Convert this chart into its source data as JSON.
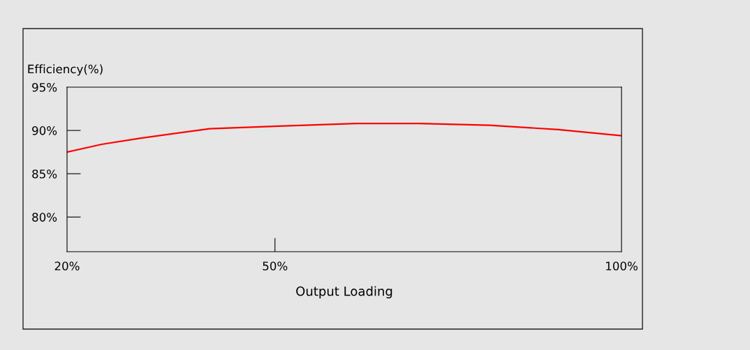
{
  "chart_data": {
    "type": "line",
    "xlabel": "Output Loading",
    "ylabel": "Efficiency(%)",
    "x": [
      20,
      25,
      30.5,
      40.6,
      50.6,
      61.7,
      70.8,
      80.9,
      90.9,
      100
    ],
    "series": [
      {
        "color": "#ff0000",
        "values": [
          87.5,
          88.4,
          89.1,
          90.2,
          90.5,
          90.8,
          90.8,
          90.6,
          90.1,
          89.4
        ]
      }
    ],
    "xlim": [
      20,
      100
    ],
    "xticks": [
      {
        "value": 20,
        "label": "20%"
      },
      {
        "value": 50,
        "label": "50%"
      },
      {
        "value": 100,
        "label": "100%"
      }
    ],
    "ylim": [
      76,
      95
    ],
    "yticks": [
      {
        "value": 80,
        "label": "80%"
      },
      {
        "value": 85,
        "label": "85%"
      },
      {
        "value": 90,
        "label": "90%"
      },
      {
        "value": 95,
        "label": "95%"
      }
    ],
    "grid": false,
    "legend": false,
    "marker": "none",
    "line_style": "solid"
  }
}
